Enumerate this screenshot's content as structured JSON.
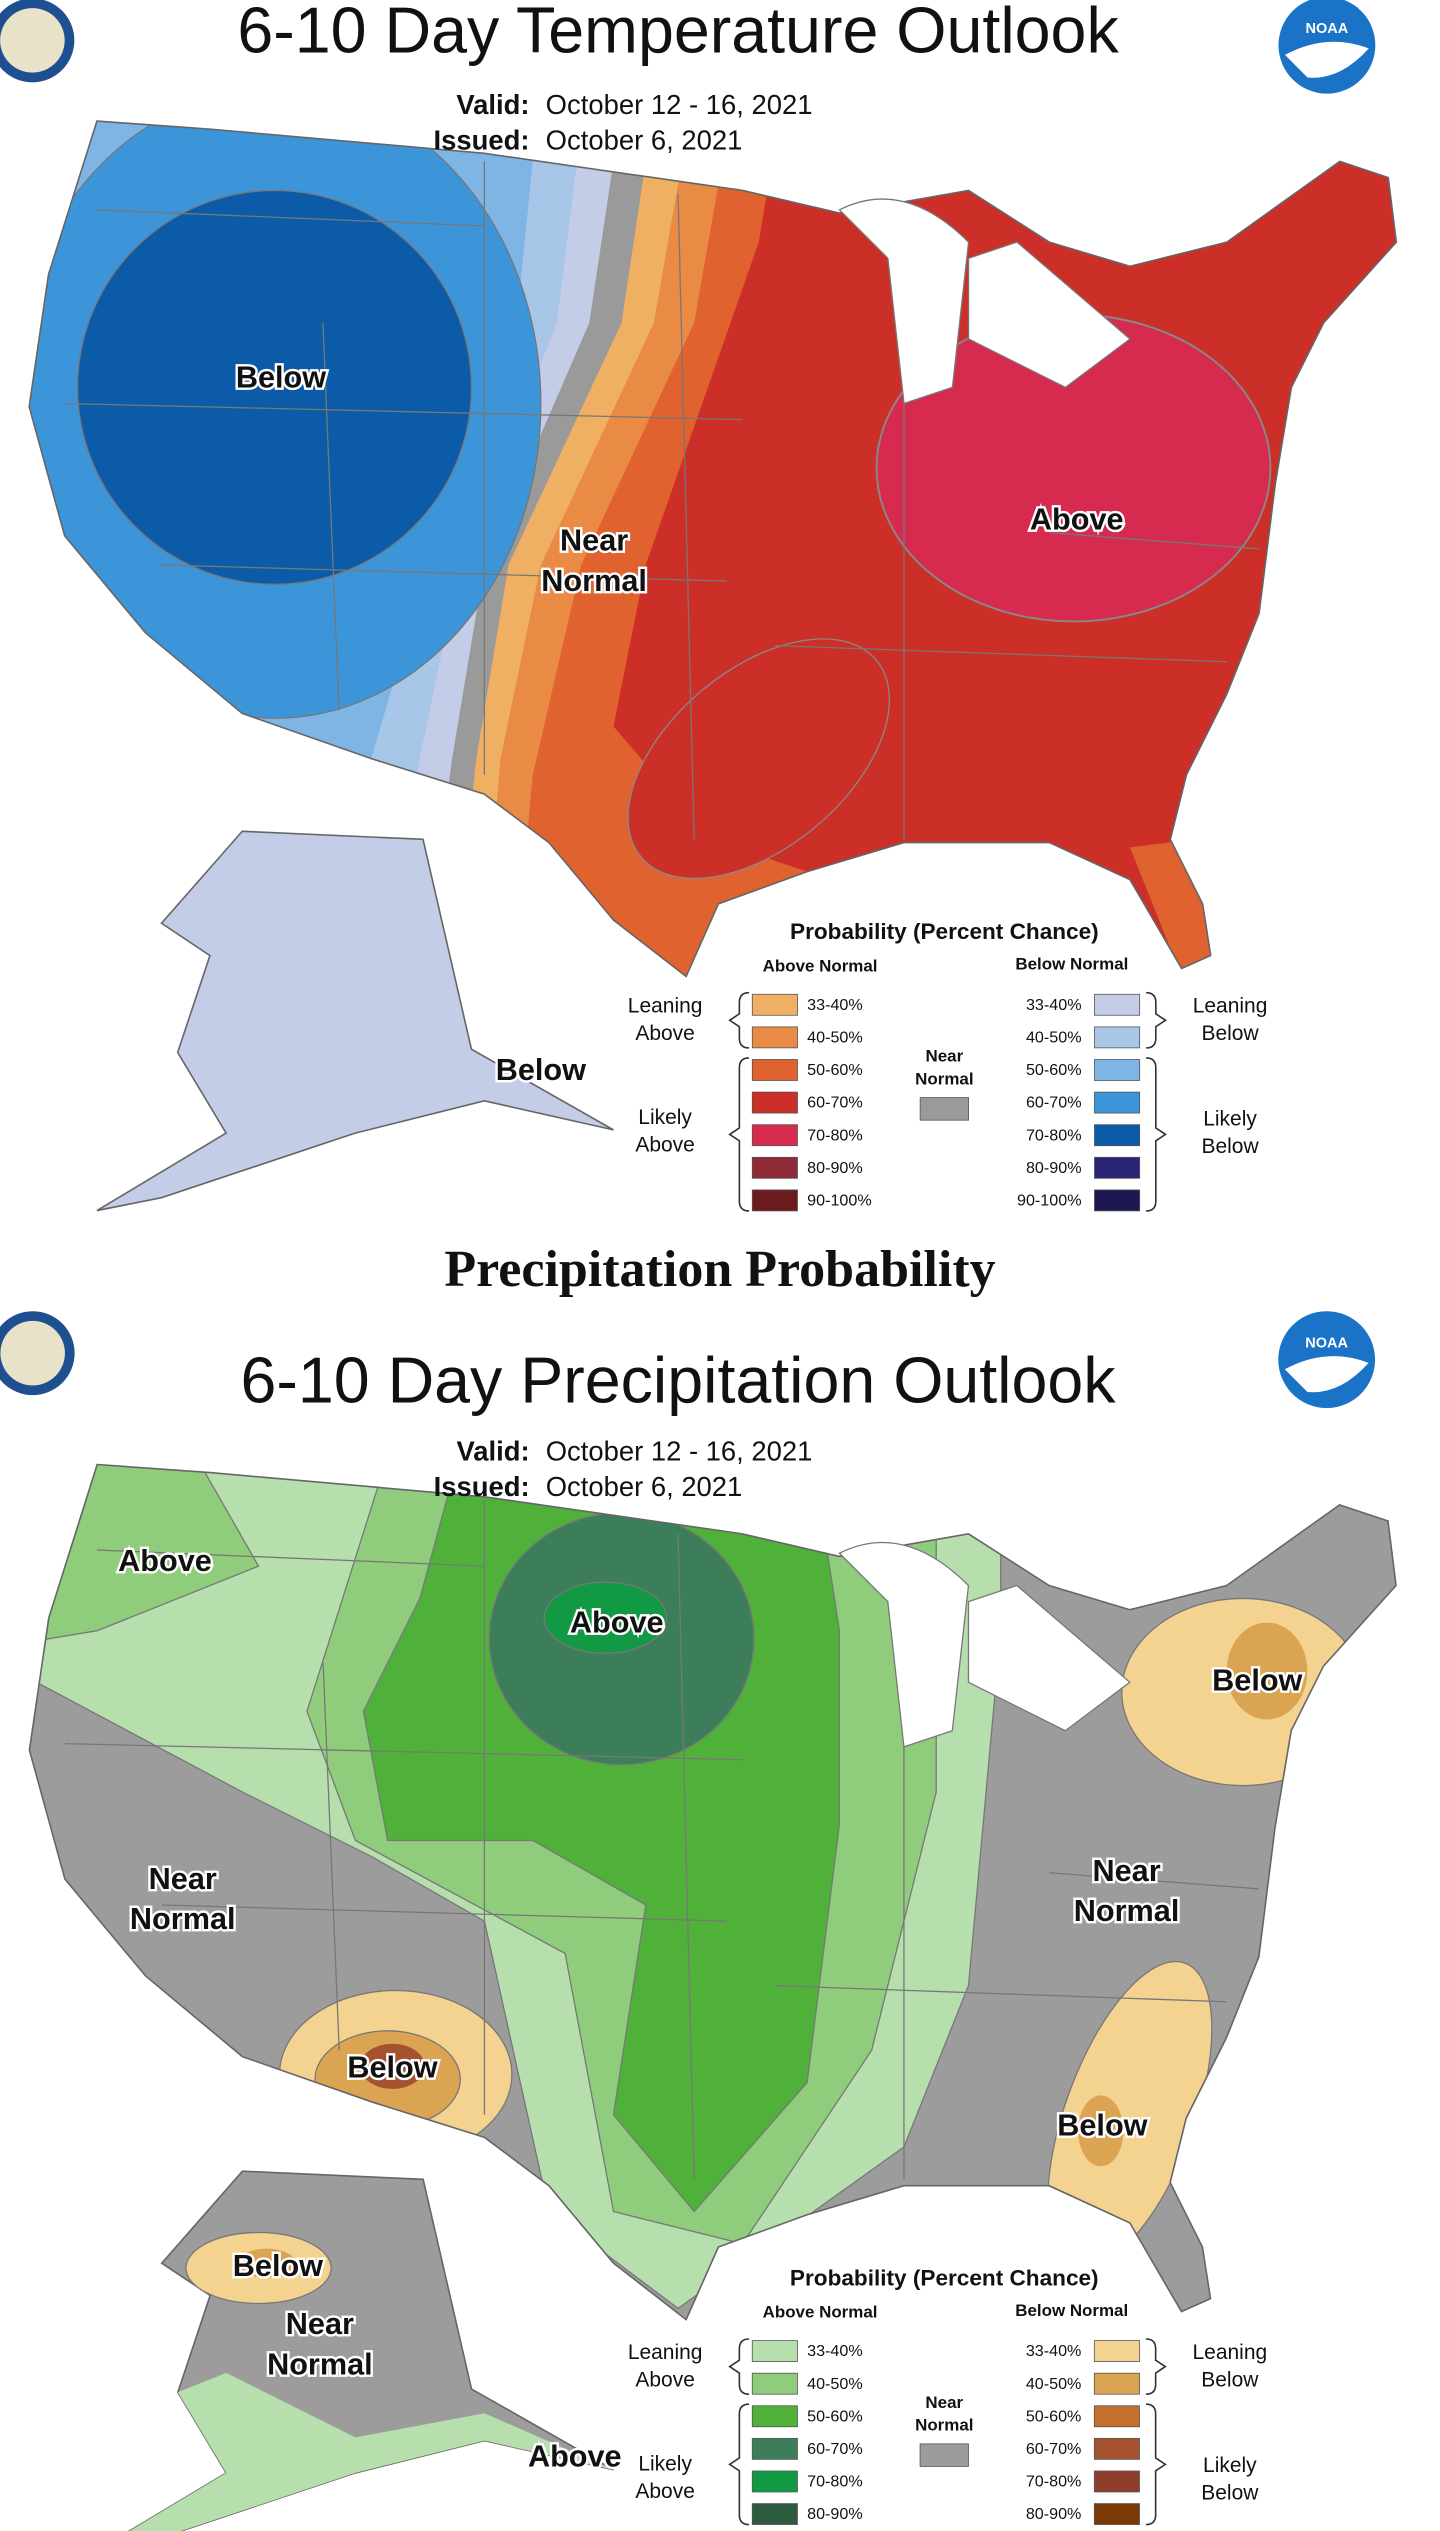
{
  "temperature": {
    "logo_text": "NOAA",
    "title": "6-10 Day Temperature Outlook",
    "valid_label": "Valid:",
    "valid": "October 12 - 16, 2021",
    "issued_label": "Issued:",
    "issued": "October 6, 2021",
    "regions": [
      {
        "lines": [
          "Below"
        ]
      },
      {
        "lines": [
          "Near",
          "Normal"
        ]
      },
      {
        "lines": [
          "Above"
        ]
      },
      {
        "lines": [
          "Below"
        ]
      }
    ],
    "legend": {
      "title": "Probability (Percent Chance)",
      "above_header": "Above Normal",
      "below_header": "Below Normal",
      "near_label": [
        "Near",
        "Normal"
      ],
      "near_color": "#9a9a9a",
      "leaning_above": [
        "Leaning",
        "Above"
      ],
      "likely_above": [
        "Likely",
        "Above"
      ],
      "leaning_below": [
        "Leaning",
        "Below"
      ],
      "likely_below": [
        "Likely",
        "Below"
      ],
      "above_rows": [
        {
          "range": "33-40%",
          "color": "#f0b064"
        },
        {
          "range": "40-50%",
          "color": "#e98b45"
        },
        {
          "range": "50-60%",
          "color": "#e0622e"
        },
        {
          "range": "60-70%",
          "color": "#cc2f27"
        },
        {
          "range": "70-80%",
          "color": "#d62a4f"
        },
        {
          "range": "80-90%",
          "color": "#8f2a38"
        },
        {
          "range": "90-100%",
          "color": "#6b1a1e"
        }
      ],
      "below_rows": [
        {
          "range": "33-40%",
          "color": "#c4cde8"
        },
        {
          "range": "40-50%",
          "color": "#a8c6e8"
        },
        {
          "range": "50-60%",
          "color": "#7eb5e5"
        },
        {
          "range": "60-70%",
          "color": "#3d95d9"
        },
        {
          "range": "70-80%",
          "color": "#0b5ba8"
        },
        {
          "range": "80-90%",
          "color": "#2a2477"
        },
        {
          "range": "90-100%",
          "color": "#1c1651"
        }
      ]
    }
  },
  "section_heading": "Precipitation Probability",
  "precipitation": {
    "logo_text": "NOAA",
    "title": "6-10 Day Precipitation Outlook",
    "valid_label": "Valid:",
    "valid": "October 12 - 16, 2021",
    "issued_label": "Issued:",
    "issued": "October 6, 2021",
    "regions": [
      {
        "lines": [
          "Above"
        ]
      },
      {
        "lines": [
          "Above"
        ]
      },
      {
        "lines": [
          "Below"
        ]
      },
      {
        "lines": [
          "Near",
          "Normal"
        ]
      },
      {
        "lines": [
          "Near",
          "Normal"
        ]
      },
      {
        "lines": [
          "Below"
        ]
      },
      {
        "lines": [
          "Below"
        ]
      },
      {
        "lines": [
          "Below"
        ]
      },
      {
        "lines": [
          "Near",
          "Normal"
        ]
      },
      {
        "lines": [
          "Above"
        ]
      }
    ],
    "legend": {
      "title": "Probability (Percent Chance)",
      "above_header": "Above Normal",
      "below_header": "Below Normal",
      "near_label": [
        "Near",
        "Normal"
      ],
      "near_color": "#9c9c9c",
      "leaning_above": [
        "Leaning",
        "Above"
      ],
      "likely_above": [
        "Likely",
        "Above"
      ],
      "leaning_below": [
        "Leaning",
        "Below"
      ],
      "likely_below": [
        "Likely",
        "Below"
      ],
      "above_rows": [
        {
          "range": "33-40%",
          "color": "#b7dfae"
        },
        {
          "range": "40-50%",
          "color": "#8fcc7b"
        },
        {
          "range": "50-60%",
          "color": "#4fb13a"
        },
        {
          "range": "60-70%",
          "color": "#3c7d5a"
        },
        {
          "range": "70-80%",
          "color": "#119a43"
        },
        {
          "range": "80-90%",
          "color": "#2c5a3c"
        }
      ],
      "below_rows": [
        {
          "range": "33-40%",
          "color": "#f3d38f"
        },
        {
          "range": "40-50%",
          "color": "#dba452"
        },
        {
          "range": "50-60%",
          "color": "#c6702e"
        },
        {
          "range": "60-70%",
          "color": "#a4522f"
        },
        {
          "range": "70-80%",
          "color": "#8f3e2c"
        },
        {
          "range": "80-90%",
          "color": "#7a3a08"
        }
      ]
    }
  }
}
